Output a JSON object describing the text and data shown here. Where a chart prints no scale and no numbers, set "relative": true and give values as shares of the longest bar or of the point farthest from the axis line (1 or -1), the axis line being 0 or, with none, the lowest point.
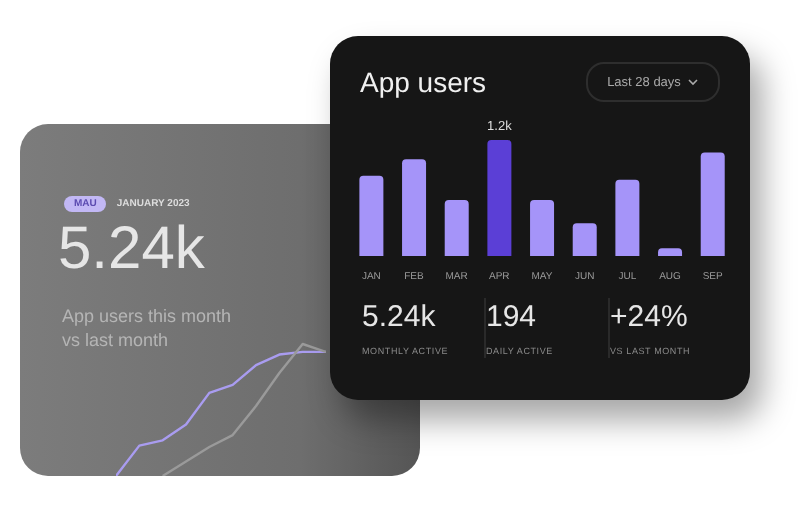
{
  "chart_data": [
    {
      "type": "line",
      "relative": true,
      "title": "5.24k",
      "annotations": [
        "MAU",
        "JANUARY 2023",
        "App users this month vs last month"
      ],
      "categories": [
        null,
        null,
        null,
        null,
        null,
        null,
        null,
        null,
        null,
        null
      ],
      "legend": false,
      "grid": false,
      "marker": "none",
      "series": [
        {
          "color": "#a99cf0",
          "values": [
            0,
            0.23,
            0.27,
            0.39,
            0.63,
            0.69,
            0.84,
            0.92,
            0.94,
            0.94
          ]
        },
        {
          "color": "#9a9a9a",
          "values": [
            null,
            null,
            0,
            0.11,
            0.22,
            0.31,
            0.53,
            0.78,
            1.0,
            0.94
          ]
        }
      ]
    },
    {
      "type": "bar",
      "title": "App users",
      "annotations": [
        "Last 28 days",
        "5.24k",
        "MONTHLY ACTIVE",
        "194",
        "DAILY ACTIVE",
        "+24%",
        "VS LAST MONTH"
      ],
      "categories": [
        "JAN",
        "FEB",
        "MAR",
        "APR",
        "MAY",
        "JUN",
        "JUL",
        "AUG",
        "SEP"
      ],
      "values": [
        830,
        1000,
        580,
        1200,
        580,
        340,
        790,
        80,
        1070
      ],
      "colors": [
        "#a594f9",
        "#a594f9",
        "#a594f9",
        "#5b3fd6",
        "#a594f9",
        "#a594f9",
        "#a594f9",
        "#a594f9",
        "#a594f9"
      ],
      "value_labels": [
        null,
        null,
        null,
        "1.2k",
        null,
        null,
        null,
        null,
        null
      ],
      "legend": false,
      "grid": false
    }
  ]
}
